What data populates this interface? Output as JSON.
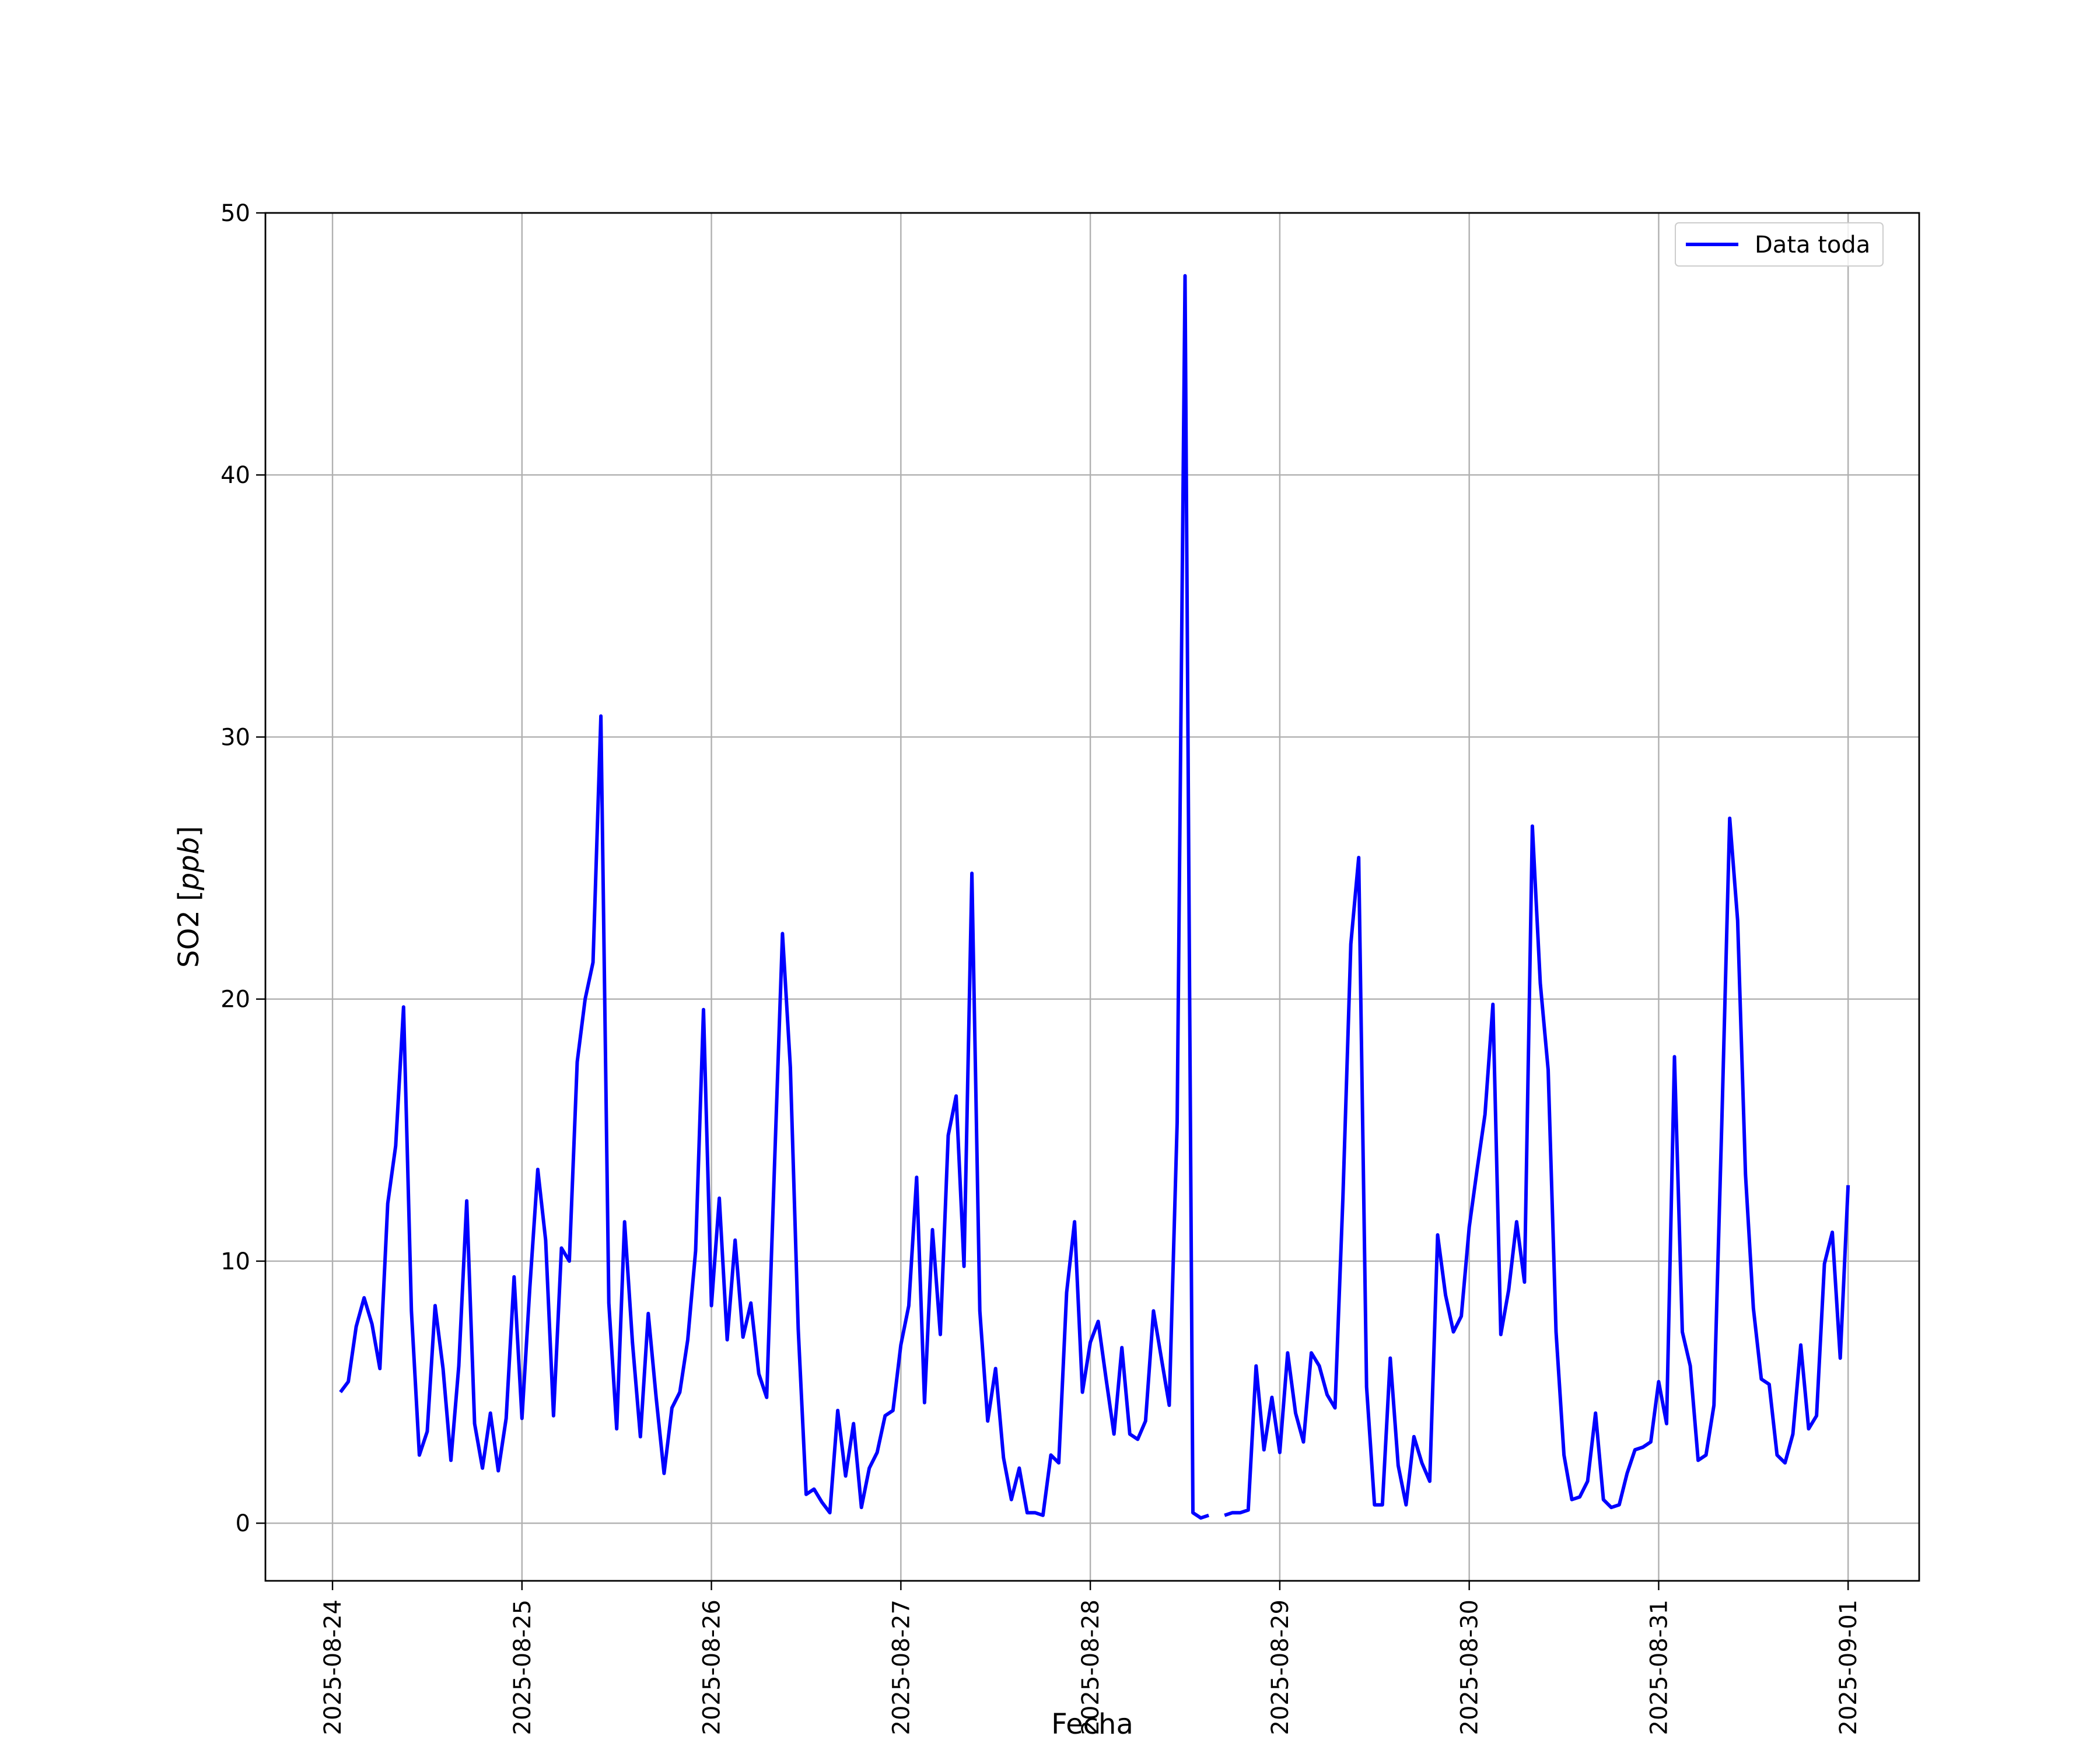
{
  "chart_data": {
    "type": "line",
    "title": "",
    "xlabel": "Fecha",
    "ylabel": "SO2 [ppb]",
    "ylabel_main": "SO2 [",
    "ylabel_unit": "ppb",
    "ylabel_close": "]",
    "ylim": [
      -2.2,
      50
    ],
    "xlim": [
      "2025-08-23T15:30",
      "2025-09-01T09:00"
    ],
    "grid": true,
    "legend_position": "top-right",
    "y_ticks": [
      0,
      10,
      20,
      30,
      40,
      50
    ],
    "x_ticks": [
      "2025-08-24",
      "2025-08-25",
      "2025-08-26",
      "2025-08-27",
      "2025-08-28",
      "2025-08-29",
      "2025-08-30",
      "2025-08-31",
      "2025-09-01"
    ],
    "sampling": "hourly",
    "series": [
      {
        "name": "Data toda",
        "color": "#0000ff",
        "start": "2025-08-24T01:00",
        "step_hours": 1,
        "values": [
          5.0,
          5.4,
          7.5,
          8.6,
          7.6,
          5.9,
          12.2,
          14.4,
          19.7,
          8.1,
          2.6,
          3.5,
          8.3,
          5.9,
          2.4,
          6.0,
          12.3,
          3.8,
          2.1,
          4.2,
          2.0,
          4.0,
          9.4,
          4.0,
          9.0,
          13.5,
          10.8,
          4.1,
          10.5,
          10.0,
          17.6,
          20.0,
          21.4,
          30.8,
          8.4,
          3.6,
          11.5,
          6.9,
          3.3,
          8.0,
          4.8,
          1.9,
          4.4,
          5.0,
          7.0,
          10.4,
          19.6,
          8.3,
          12.4,
          7.0,
          10.8,
          7.1,
          8.4,
          5.7,
          4.8,
          13.7,
          22.5,
          17.4,
          7.4,
          1.1,
          1.3,
          0.8,
          0.4,
          4.3,
          1.8,
          3.8,
          0.6,
          2.1,
          2.7,
          4.1,
          4.3,
          6.8,
          8.3,
          13.2,
          4.6,
          11.2,
          7.2,
          14.8,
          16.3,
          9.8,
          24.8,
          8.1,
          3.9,
          5.9,
          2.5,
          0.9,
          2.1,
          0.4,
          0.4,
          0.3,
          2.6,
          2.3,
          8.8,
          11.5,
          5.0,
          6.9,
          7.7,
          5.5,
          3.4,
          6.7,
          3.4,
          3.2,
          3.9,
          8.1,
          6.3,
          4.5,
          15.3,
          47.6,
          0.4,
          0.2,
          0.3,
          null,
          0.3,
          0.4,
          0.4,
          0.5,
          6.0,
          2.8,
          4.8,
          2.7,
          6.5,
          4.2,
          3.1,
          6.5,
          6.0,
          4.9,
          4.4,
          12.4,
          22.1,
          25.4,
          5.2,
          0.7,
          0.7,
          6.3,
          2.2,
          0.7,
          3.3,
          2.3,
          1.6,
          11.0,
          8.7,
          7.3,
          7.9,
          11.3,
          13.5,
          15.6,
          19.8,
          7.2,
          8.9,
          11.5,
          9.2,
          26.6,
          20.6,
          17.3,
          7.3,
          2.6,
          0.9,
          1.0,
          1.6,
          4.2,
          0.9,
          0.6,
          0.7,
          1.9,
          2.8,
          2.9,
          3.1,
          5.4,
          3.8,
          17.8,
          7.3,
          6.0,
          2.4,
          2.6,
          4.5,
          15.3,
          26.9,
          23.0,
          13.3,
          8.2,
          5.5,
          5.3,
          2.6,
          2.3,
          3.4,
          6.8,
          3.6,
          4.1,
          9.9,
          11.1,
          6.3,
          12.9
        ]
      }
    ]
  }
}
